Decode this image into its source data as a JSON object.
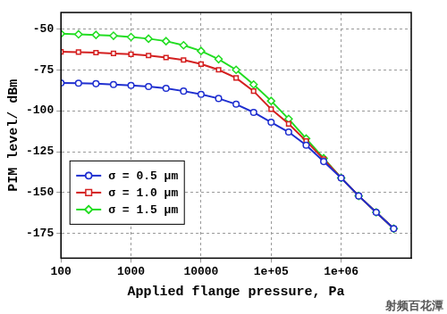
{
  "chart_data": {
    "type": "line",
    "x_label": "Applied flange pressure, Pa",
    "y_label": "PIM level/ dBm",
    "annotations": [
      "射频百花潭"
    ],
    "log": "x",
    "grid": true,
    "legend": "lower left",
    "xlim": [
      100,
      10000000
    ],
    "ylim": [
      -190,
      -40
    ],
    "xticks": [
      100,
      1000,
      10000,
      {
        "value": 100000,
        "label": "1e+05"
      },
      {
        "value": 1000000,
        "label": "1e+06"
      }
    ],
    "yticks": [
      -50,
      -75,
      -100,
      -125,
      -150,
      -175
    ],
    "x": [
      100,
      178,
      316,
      562,
      1000,
      1778,
      3162,
      5623,
      10000,
      17783,
      31623,
      56234,
      100000,
      177828,
      316228,
      562341,
      1000000,
      1778279,
      3162278,
      5623413
    ],
    "series": [
      {
        "name": "σ = 0.5 μm",
        "color": "#1f2fd0",
        "marker": "circle",
        "values": [
          -83,
          -83.2,
          -83.5,
          -84,
          -84.5,
          -85.2,
          -86.3,
          -88,
          -90,
          -92.5,
          -96,
          -101,
          -107,
          -113,
          -121,
          -131,
          -141,
          -152,
          -162,
          -172
        ]
      },
      {
        "name": "σ = 1.0 μm",
        "color": "#d42020",
        "marker": "square",
        "values": [
          -64,
          -64.2,
          -64.5,
          -65,
          -65.5,
          -66.3,
          -67.5,
          -69,
          -71.5,
          -75,
          -80,
          -88,
          -99,
          -108,
          -118.5,
          -129.5,
          -141,
          -152,
          -162,
          -172
        ]
      },
      {
        "name": "σ = 1.5 μm",
        "color": "#22dd22",
        "marker": "diamond",
        "values": [
          -53,
          -53.3,
          -53.7,
          -54.2,
          -55,
          -56,
          -57.5,
          -60,
          -63.5,
          -68.5,
          -75,
          -84,
          -94,
          -105,
          -117,
          -129,
          -141,
          -152,
          -162,
          -172
        ]
      }
    ]
  }
}
